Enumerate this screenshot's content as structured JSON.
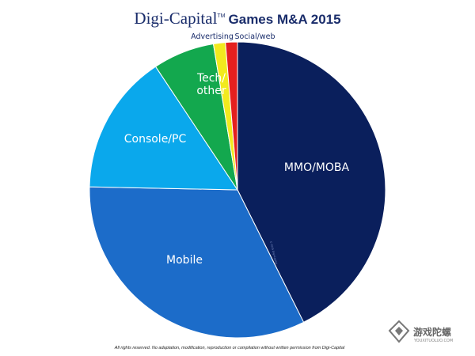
{
  "title": {
    "brand": "Digi-Capital",
    "tm": "TM",
    "rest": "Games M&A 2015"
  },
  "chart_data": {
    "type": "pie",
    "title": "Digi-Capital Games M&A 2015",
    "start_angle_deg": 0,
    "direction": "clockwise",
    "slices": [
      {
        "label": "MMO/MOBA",
        "value": 42.5,
        "color": "#0a1f5c",
        "label_color": "#ffffff"
      },
      {
        "label": "Mobile",
        "value": 32.6,
        "color": "#1c6cc9",
        "label_color": "#ffffff"
      },
      {
        "label": "Console/PC",
        "value": 15.3,
        "color": "#0aa8ec",
        "label_color": "#ffffff"
      },
      {
        "label": "Tech/ other",
        "value": 6.7,
        "color": "#13a84e",
        "label_color": "#ffffff"
      },
      {
        "label": "Advertising",
        "value": 1.3,
        "color": "#f2ea1e",
        "label_color": "#1a2d6b"
      },
      {
        "label": "Social/web",
        "value": 1.3,
        "color": "#e4201e",
        "label_color": "#1a2d6b"
      }
    ]
  },
  "labels": {
    "mmo": "MMO/MOBA",
    "mobile": "Mobile",
    "console": "Console/PC",
    "tech_line1": "Tech/",
    "tech_line2": "other",
    "advertising": "Advertising",
    "social": "Social/web"
  },
  "small_credit": "© 2015 Digi-Capital",
  "footnote": "All rights reserved. No adaptation, modification, reproduction or compilation without written permission from Digi-Capital",
  "watermark": {
    "text": "游戏陀螺",
    "sub": "YOUXITUOLUO.COM"
  }
}
